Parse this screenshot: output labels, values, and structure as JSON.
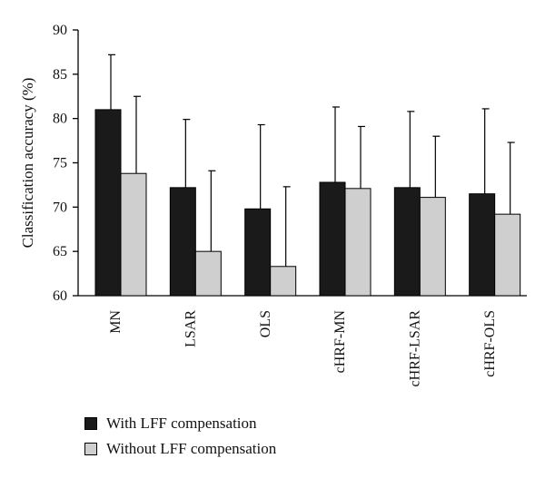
{
  "chart_data": {
    "type": "bar",
    "title": "",
    "xlabel": "",
    "ylabel": "Classification accuracy (%)",
    "ylim": [
      60,
      90
    ],
    "yticks": [
      60,
      65,
      70,
      75,
      80,
      85,
      90
    ],
    "categories": [
      "MN",
      "LSAR",
      "OLS",
      "cHRF-MN",
      "cHRF-LSAR",
      "cHRF-OLS"
    ],
    "series": [
      {
        "name": "With LFF compensation",
        "color": "#1a1a1a",
        "values": [
          81.0,
          72.2,
          69.8,
          72.8,
          72.2,
          71.5
        ],
        "error_upper": [
          87.2,
          79.9,
          79.3,
          81.3,
          80.8,
          81.1
        ]
      },
      {
        "name": "Without LFF compensation",
        "color": "#cfcfcf",
        "values": [
          73.8,
          65.0,
          63.3,
          72.1,
          71.1,
          69.2
        ],
        "error_upper": [
          82.5,
          74.1,
          72.3,
          79.1,
          78.0,
          77.3
        ]
      }
    ],
    "grid": false,
    "legend_position": "bottom-left"
  }
}
